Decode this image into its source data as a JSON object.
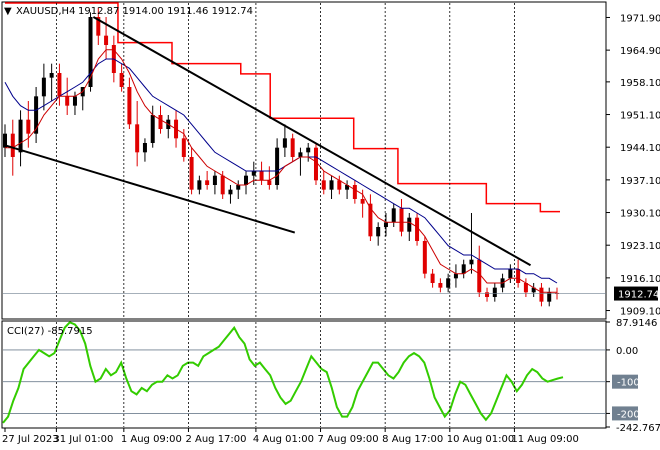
{
  "header": {
    "symbol": "XAUUSD,H4",
    "ohlc": "1912.87 1914.00 1911.46 1912.74"
  },
  "indicator": {
    "label": "CCI(27) -85.7915"
  },
  "colors": {
    "bull": "#000000",
    "bear": "#e00000",
    "ma_fast": "#cc0000",
    "ma_slow": "#00008b",
    "resistance": "#ff0000",
    "trendline": "#000000",
    "cci": "#33cc00",
    "level": "#708090"
  },
  "price_axis": {
    "ticks": [
      "1971.90",
      "1964.90",
      "1958.10",
      "1951.10",
      "1944.10",
      "1937.10",
      "1930.10",
      "1923.10",
      "1916.10",
      "1909.10"
    ],
    "current": "1912.74"
  },
  "cci_axis": {
    "ticks": [
      "87.9146",
      "0.00",
      "-100",
      "-200",
      "-242.767"
    ]
  },
  "time_axis": {
    "labels": [
      "27 Jul 2023",
      "31 Jul 01:00",
      "1 Aug 09:00",
      "2 Aug 17:00",
      "4 Aug 01:00",
      "7 Aug 09:00",
      "8 Aug 17:00",
      "10 Aug 01:00",
      "11 Aug 09:00"
    ]
  },
  "chart_data": {
    "type": "candlestick",
    "symbol": "XAUUSD",
    "timeframe": "H4",
    "price_range": [
      1907.5,
      1975.0
    ],
    "cci_range": [
      -242.767,
      87.9146
    ],
    "candles": [
      [
        1944,
        1949,
        1942,
        1947
      ],
      [
        1947,
        1950,
        1938,
        1942
      ],
      [
        1943,
        1952,
        1940,
        1950
      ],
      [
        1950,
        1954,
        1944,
        1947
      ],
      [
        1947,
        1957,
        1945,
        1955
      ],
      [
        1955,
        1962,
        1952,
        1959
      ],
      [
        1959,
        1962,
        1954,
        1960
      ],
      [
        1960,
        1962,
        1953,
        1955
      ],
      [
        1955,
        1959,
        1951,
        1953
      ],
      [
        1953,
        1956,
        1951,
        1955
      ],
      [
        1955,
        1957,
        1952,
        1957
      ],
      [
        1957,
        1973,
        1956,
        1972
      ],
      [
        1972,
        1974,
        1966,
        1968
      ],
      [
        1968,
        1972,
        1963,
        1966
      ],
      [
        1966,
        1968,
        1958,
        1960
      ],
      [
        1960,
        1962,
        1956,
        1957
      ],
      [
        1957,
        1959,
        1948,
        1949
      ],
      [
        1949,
        1954,
        1940,
        1943
      ],
      [
        1943,
        1946,
        1941,
        1945
      ],
      [
        1945,
        1953,
        1944,
        1951
      ],
      [
        1951,
        1953,
        1947,
        1948
      ],
      [
        1948,
        1951,
        1946,
        1950
      ],
      [
        1950,
        1952,
        1944,
        1946
      ],
      [
        1946,
        1948,
        1941,
        1942
      ],
      [
        1942,
        1944,
        1934,
        1935
      ],
      [
        1935,
        1938,
        1934,
        1937
      ],
      [
        1937,
        1939,
        1935,
        1936
      ],
      [
        1936,
        1939,
        1934,
        1938
      ],
      [
        1938,
        1939,
        1933,
        1934
      ],
      [
        1934,
        1936,
        1932,
        1935
      ],
      [
        1935,
        1937,
        1933,
        1936
      ],
      [
        1936,
        1939,
        1934,
        1938
      ],
      [
        1938,
        1941,
        1936,
        1939
      ],
      [
        1939,
        1941,
        1936,
        1937
      ],
      [
        1937,
        1940,
        1935,
        1936
      ],
      [
        1936,
        1946,
        1935,
        1944
      ],
      [
        1944,
        1949,
        1942,
        1946
      ],
      [
        1946,
        1947,
        1941,
        1942
      ],
      [
        1942,
        1944,
        1938,
        1943
      ],
      [
        1943,
        1945,
        1941,
        1944
      ],
      [
        1944,
        1945,
        1936,
        1937
      ],
      [
        1937,
        1939,
        1934,
        1935
      ],
      [
        1935,
        1938,
        1933,
        1937
      ],
      [
        1937,
        1938,
        1934,
        1935
      ],
      [
        1935,
        1937,
        1933,
        1936
      ],
      [
        1936,
        1937,
        1932,
        1933
      ],
      [
        1933,
        1935,
        1929,
        1932
      ],
      [
        1932,
        1934,
        1924,
        1925
      ],
      [
        1925,
        1928,
        1923,
        1927
      ],
      [
        1927,
        1930,
        1925,
        1928
      ],
      [
        1928,
        1932,
        1927,
        1931
      ],
      [
        1931,
        1933,
        1925,
        1926
      ],
      [
        1926,
        1930,
        1924,
        1929
      ],
      [
        1929,
        1930,
        1923,
        1924
      ],
      [
        1924,
        1925,
        1916,
        1917
      ],
      [
        1917,
        1918,
        1914,
        1915
      ],
      [
        1915,
        1916,
        1913,
        1914
      ],
      [
        1914,
        1917,
        1913,
        1916
      ],
      [
        1916,
        1919,
        1914,
        1917
      ],
      [
        1917,
        1920,
        1916,
        1919
      ],
      [
        1919,
        1930,
        1917,
        1920
      ],
      [
        1920,
        1923,
        1912,
        1913
      ],
      [
        1913,
        1914,
        1911,
        1912
      ],
      [
        1912,
        1915,
        1911,
        1914
      ],
      [
        1914,
        1917,
        1913,
        1916
      ],
      [
        1916,
        1919,
        1915,
        1918
      ],
      [
        1918,
        1920,
        1914,
        1915
      ],
      [
        1915,
        1916,
        1912,
        1913
      ],
      [
        1913,
        1915,
        1912,
        1914
      ],
      [
        1914,
        1915,
        1910,
        1911
      ],
      [
        1911,
        1914,
        1910,
        1913
      ],
      [
        1912.87,
        1914.0,
        1911.46,
        1912.74
      ]
    ],
    "ma_fast": [
      1944,
      1944,
      1945,
      1946,
      1948,
      1951,
      1953,
      1955,
      1955,
      1955,
      1956,
      1959,
      1963,
      1965,
      1965,
      1963,
      1960,
      1956,
      1953,
      1951,
      1950,
      1949,
      1948,
      1947,
      1944,
      1942,
      1940,
      1939,
      1938,
      1937,
      1936,
      1936,
      1937,
      1937,
      1937,
      1938,
      1940,
      1941,
      1942,
      1942,
      1941,
      1939,
      1938,
      1937,
      1936,
      1935,
      1934,
      1931,
      1929,
      1928,
      1928,
      1928,
      1928,
      1927,
      1925,
      1922,
      1919,
      1918,
      1917,
      1917,
      1918,
      1917,
      1915,
      1915,
      1915,
      1916,
      1916,
      1915,
      1914,
      1913,
      1913,
      1913
    ],
    "ma_slow": [
      1958,
      1955,
      1953,
      1952,
      1952,
      1953,
      1954,
      1955,
      1956,
      1957,
      1958,
      1960,
      1962,
      1963,
      1963,
      1962,
      1961,
      1959,
      1957,
      1955,
      1954,
      1953,
      1952,
      1951,
      1949,
      1947,
      1945,
      1943,
      1942,
      1941,
      1940,
      1939,
      1939,
      1939,
      1939,
      1939,
      1940,
      1941,
      1942,
      1942,
      1942,
      1941,
      1940,
      1939,
      1938,
      1937,
      1936,
      1935,
      1934,
      1933,
      1932,
      1931,
      1931,
      1930,
      1929,
      1927,
      1925,
      1923,
      1922,
      1921,
      1921,
      1920,
      1919,
      1918,
      1918,
      1918,
      1918,
      1917,
      1917,
      1916,
      1916,
      1915
    ],
    "resistance_steps": [
      [
        0,
        1975.0
      ],
      [
        23,
        1966.5
      ],
      [
        34,
        1962.0
      ],
      [
        48,
        1959.8
      ],
      [
        54,
        1950.3
      ],
      [
        71,
        1943.8
      ],
      [
        80,
        1936.3
      ],
      [
        98,
        1932.0
      ],
      [
        109,
        1930.3
      ],
      [
        113,
        1930.3
      ]
    ],
    "trendlines": [
      {
        "name": "upper",
        "from": [
          18,
          1972.0
        ],
        "to": [
          107,
          1918.8
        ]
      },
      {
        "name": "lower",
        "from": [
          0,
          1944.5
        ],
        "to": [
          59,
          1925.8
        ]
      }
    ],
    "cci": [
      -230,
      -210,
      -160,
      -120,
      -60,
      -40,
      -20,
      0,
      -10,
      -20,
      -10,
      30,
      70,
      87,
      80,
      60,
      20,
      -50,
      -100,
      -90,
      -60,
      -80,
      -70,
      -40,
      -90,
      -130,
      -140,
      -120,
      -130,
      -110,
      -100,
      -100,
      -80,
      -90,
      -80,
      -50,
      -40,
      -40,
      -50,
      -20,
      -10,
      0,
      10,
      30,
      50,
      70,
      40,
      20,
      -30,
      -50,
      -40,
      -60,
      -80,
      -120,
      -150,
      -170,
      -160,
      -130,
      -100,
      -60,
      -20,
      -40,
      -60,
      -70,
      -120,
      -180,
      -210,
      -210,
      -180,
      -130,
      -100,
      -70,
      -40,
      -40,
      -60,
      -80,
      -90,
      -70,
      -40,
      -20,
      -10,
      -20,
      -40,
      -90,
      -150,
      -180,
      -210,
      -190,
      -140,
      -100,
      -110,
      -140,
      -170,
      -200,
      -220,
      -200,
      -160,
      -120,
      -80,
      -100,
      -130,
      -110,
      -80,
      -60,
      -70,
      -90,
      -100,
      -95,
      -90,
      -85.79
    ],
    "cci_levels": [
      -100,
      -200,
      0
    ]
  }
}
